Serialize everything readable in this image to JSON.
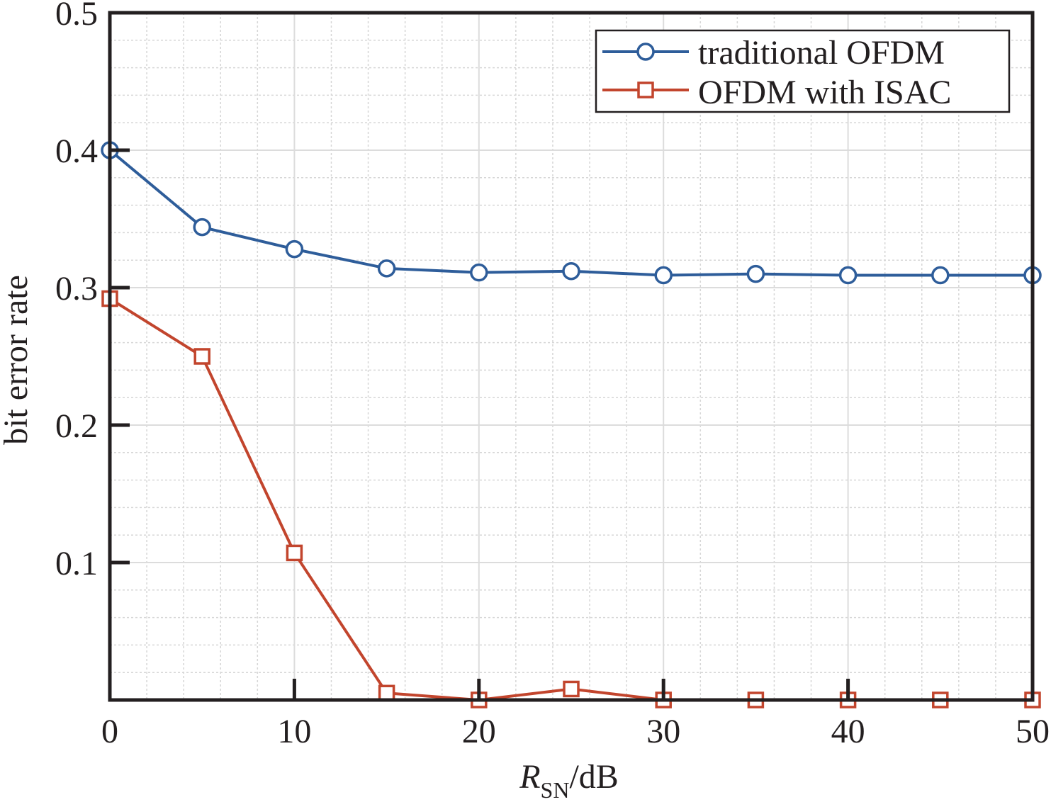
{
  "chart_data": {
    "type": "line",
    "xlabel": {
      "main": "R",
      "sub": "SN",
      "unit": "/dB"
    },
    "ylabel": "bit error rate",
    "xlim": [
      0,
      50
    ],
    "ylim": [
      0,
      0.5
    ],
    "xticks": [
      "0",
      "10",
      "20",
      "30",
      "40",
      "50"
    ],
    "yticks": [
      "0.1",
      "0.2",
      "0.3",
      "0.4",
      "0.5"
    ],
    "x": [
      0,
      5,
      10,
      15,
      20,
      25,
      30,
      35,
      40,
      45,
      50
    ],
    "grid": true,
    "legend_position": "top-right",
    "series": [
      {
        "name": "traditional OFDM",
        "marker": "circle",
        "color": "#2e5d9a",
        "values": [
          0.4,
          0.344,
          0.328,
          0.314,
          0.311,
          0.312,
          0.309,
          0.31,
          0.309,
          0.309,
          0.309
        ]
      },
      {
        "name": "OFDM with ISAC",
        "marker": "square",
        "color": "#c2452d",
        "values": [
          0.292,
          0.25,
          0.107,
          0.005,
          0.0,
          0.008,
          0.0,
          0.0,
          0.0,
          0.0,
          0.0
        ]
      }
    ]
  },
  "colors": {
    "axis": "#231f20",
    "grid_major": "#dcdcdc",
    "grid_minor": "#d6d6d6"
  }
}
